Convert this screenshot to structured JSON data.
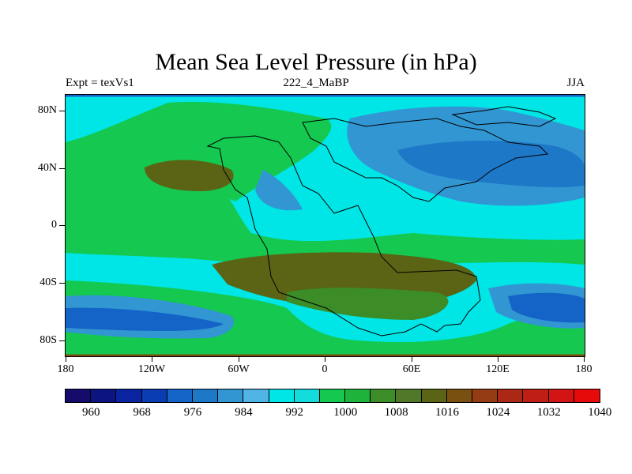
{
  "title": "Mean Sea Level Pressure (in hPa)",
  "subtitle_left": "Expt = texVs1",
  "subtitle_center": "222_4_MaBP",
  "subtitle_right": "JJA",
  "y_ticks": [
    "80N",
    "40N",
    "0",
    "40S",
    "80S"
  ],
  "x_ticks": [
    "180",
    "120W",
    "60W",
    "0",
    "60E",
    "120E",
    "180"
  ],
  "colorbar": {
    "colors": [
      "#150b6b",
      "#0b1480",
      "#0a23a0",
      "#0a3cb4",
      "#1464c8",
      "#1e78c8",
      "#3296d2",
      "#50b4e6",
      "#00e6e6",
      "#14dcdc",
      "#14c850",
      "#1eb43c",
      "#3c8c28",
      "#507828",
      "#5a6414",
      "#7a5010",
      "#963c14",
      "#aa2814",
      "#be1e14",
      "#d21414",
      "#e60a0a"
    ],
    "labels": [
      "960",
      "968",
      "976",
      "984",
      "992",
      "1000",
      "1008",
      "1016",
      "1024",
      "1032",
      "1040"
    ],
    "units": "hPa"
  },
  "map_colors": {
    "ocean_base": "#00e6e6",
    "light_blue": "#3296d2",
    "mid_blue": "#1e78c8",
    "deep_blue": "#1464c8",
    "green": "#14c850",
    "green_dark": "#3c8c28",
    "olive": "#5a6414",
    "brown": "#7a5010"
  }
}
